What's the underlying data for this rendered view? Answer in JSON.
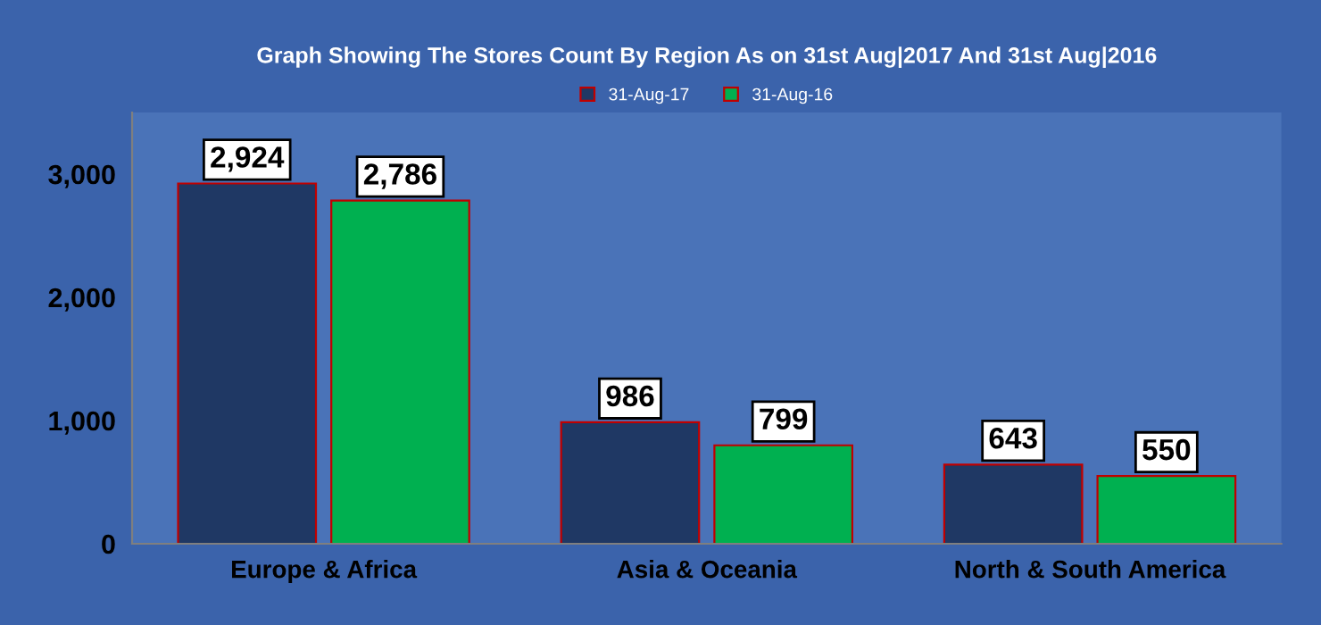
{
  "chart_data": {
    "type": "bar",
    "title": "Graph Showing The Stores Count By Region As on 31st Aug|2017 And 31st Aug|2016",
    "categories": [
      "Europe & Africa",
      "Asia & Oceania",
      "North & South America"
    ],
    "series": [
      {
        "name": "31-Aug-17",
        "color": "#1f3864",
        "values": [
          2924,
          986,
          643
        ],
        "value_labels": [
          "2,924",
          "986",
          "643"
        ]
      },
      {
        "name": "31-Aug-16",
        "color": "#00b050",
        "values": [
          2786,
          799,
          550
        ],
        "value_labels": [
          "2,786",
          "799",
          "550"
        ]
      }
    ],
    "ylim": [
      0,
      3500
    ],
    "yticks": [
      {
        "value": 0,
        "label": "0"
      },
      {
        "value": 1000,
        "label": "1,000"
      },
      {
        "value": 2000,
        "label": "2,000"
      },
      {
        "value": 3000,
        "label": "3,000"
      }
    ],
    "legend": "top",
    "grid": false
  }
}
